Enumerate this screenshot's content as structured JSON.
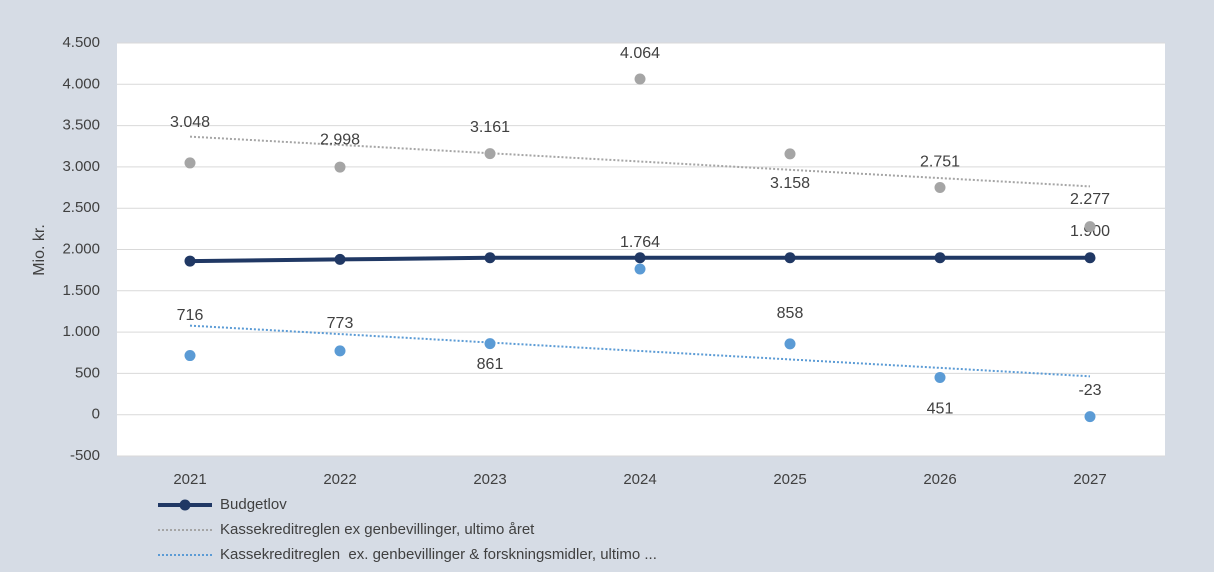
{
  "chart_data": {
    "type": "line",
    "ylabel": "Mio. kr.",
    "categories": [
      "2021",
      "2022",
      "2023",
      "2024",
      "2025",
      "2026",
      "2027"
    ],
    "ylim": [
      -500,
      4500
    ],
    "yticks": [
      -500,
      0,
      500,
      {
        "value": 1000,
        "label": "1.000"
      },
      {
        "value": 1500,
        "label": "1.500"
      },
      {
        "value": 2000,
        "label": "2.000"
      },
      {
        "value": 2500,
        "label": "2.500"
      },
      {
        "value": 3000,
        "label": "3.000"
      },
      {
        "value": 3500,
        "label": "3.500"
      },
      {
        "value": 4000,
        "label": "4.000"
      },
      {
        "value": 4500,
        "label": "4.500"
      }
    ],
    "grid": true,
    "series": [
      {
        "name": "Budgetlov",
        "color": "#203864",
        "line": true,
        "values": [
          1860,
          1880,
          1900,
          1900,
          1900,
          1900,
          1900
        ],
        "value_labels": [
          null,
          null,
          null,
          null,
          null,
          null,
          "1.900"
        ]
      },
      {
        "name": "Kassekreditreglen ex genbevillinger, ultimo året",
        "color": "#a5a5a5",
        "line": false,
        "trendline": "linear",
        "values": [
          3048,
          2998,
          3161,
          4064,
          3158,
          2751,
          2277
        ],
        "value_labels": [
          "3.048",
          "2.998",
          "3.161",
          "4.064",
          "3.158",
          "2.751",
          "2.277"
        ]
      },
      {
        "name": "Kassekreditreglen  ex. genbevillinger & forskningsmidler, ultimo ...",
        "color": "#5b9bd5",
        "line": false,
        "trendline": "linear",
        "values": [
          716,
          773,
          861,
          1764,
          858,
          451,
          -23
        ],
        "value_labels": [
          "716",
          "773",
          "861",
          "1.764",
          "858",
          "451",
          "-23"
        ]
      }
    ]
  }
}
